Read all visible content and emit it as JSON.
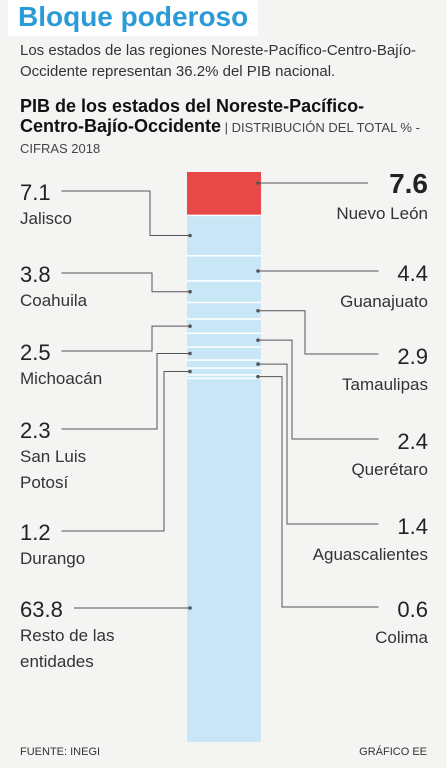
{
  "headline": "Bloque poderoso",
  "lede": "Los estados de las regiones Noreste-Pacífico-Centro-Bajío-Occidente representan 36.2% del PIB nacional.",
  "chart_title_line1": "PIB de los estados del Noreste-Pacífico-",
  "chart_title_line2": "Centro-Bajío-Occidente",
  "chart_subtitle_a": " | DISTRIBUCIÓN DEL TOTAL % -",
  "chart_subtitle_b": "CIFRAS 2018",
  "footer_source": "FUENTE: INEGI",
  "footer_credit": "GRÁFICO EE",
  "colors": {
    "highlight": "#e84848",
    "segment": "#c9e6f7",
    "divider": "#ffffff",
    "headline": "#2a9bd6"
  },
  "chart_data": {
    "type": "bar",
    "orientation": "stacked-vertical",
    "title": "PIB de los estados del Noreste-Pacífico-Centro-Bajío-Occidente",
    "unit": "% del total",
    "categories": [
      "Nuevo León",
      "Jalisco",
      "Guanajuato",
      "Coahuila",
      "Tamaulipas",
      "Michoacán",
      "Querétaro",
      "San Luis Potosí",
      "Aguascalientes",
      "Durango",
      "Colima",
      "Resto de las entidades"
    ],
    "values": [
      7.6,
      7.1,
      4.4,
      3.8,
      2.9,
      2.5,
      2.4,
      2.3,
      1.4,
      1.2,
      0.6,
      63.8
    ],
    "labels": [
      {
        "category": "Nuevo León",
        "value_text": "7.6",
        "lines": [
          "Nuevo León"
        ],
        "side": "right",
        "highlight": true
      },
      {
        "category": "Jalisco",
        "value_text": "7.1",
        "lines": [
          "Jalisco"
        ],
        "side": "left",
        "highlight": false
      },
      {
        "category": "Guanajuato",
        "value_text": "4.4",
        "lines": [
          "Guanajuato"
        ],
        "side": "right",
        "highlight": false
      },
      {
        "category": "Coahuila",
        "value_text": "3.8",
        "lines": [
          "Coahuila"
        ],
        "side": "left",
        "highlight": false
      },
      {
        "category": "Tamaulipas",
        "value_text": "2.9",
        "lines": [
          "Tamaulipas"
        ],
        "side": "right",
        "highlight": false
      },
      {
        "category": "Michoacán",
        "value_text": "2.5",
        "lines": [
          "Michoacán"
        ],
        "side": "left",
        "highlight": false
      },
      {
        "category": "Querétaro",
        "value_text": "2.4",
        "lines": [
          "Querétaro"
        ],
        "side": "right",
        "highlight": false
      },
      {
        "category": "San Luis Potosí",
        "value_text": "2.3",
        "lines": [
          "San Luis",
          "Potosí"
        ],
        "side": "left",
        "highlight": false
      },
      {
        "category": "Aguascalientes",
        "value_text": "1.4",
        "lines": [
          "Aguascalientes"
        ],
        "side": "right",
        "highlight": false
      },
      {
        "category": "Durango",
        "value_text": "1.2",
        "lines": [
          "Durango"
        ],
        "side": "left",
        "highlight": false
      },
      {
        "category": "Colima",
        "value_text": "0.6",
        "lines": [
          "Colima"
        ],
        "side": "right",
        "highlight": false
      },
      {
        "category": "Resto de las entidades",
        "value_text": "63.8",
        "lines": [
          "Resto de las",
          "entidades"
        ],
        "side": "left",
        "highlight": false
      }
    ]
  }
}
